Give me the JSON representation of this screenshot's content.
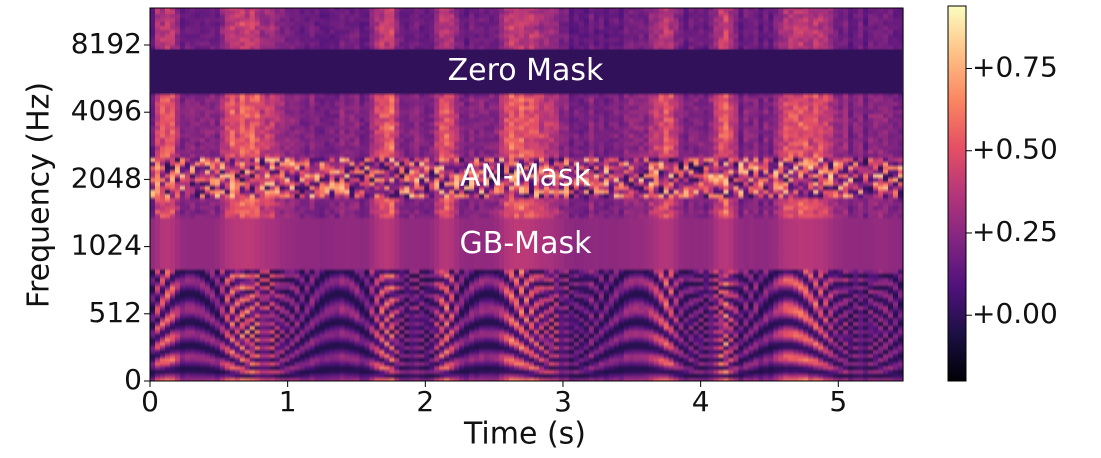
{
  "chart_data": {
    "type": "spectrogram",
    "xlabel": "Time (s)",
    "ylabel": "Frequency (Hz)",
    "xlim": [
      0,
      5.47
    ],
    "xticks": [
      0,
      1,
      2,
      3,
      4,
      5
    ],
    "ylim": [
      0,
      12000
    ],
    "yticks": [
      0,
      512,
      1024,
      2048,
      4096,
      8192
    ],
    "yscale": "symlog",
    "linthresh": 512,
    "base": 2,
    "annotations": [
      {
        "text": "Zero Mask",
        "band": [
          5000,
          7800
        ],
        "kind": "zero"
      },
      {
        "text": "AN-Mask",
        "band": [
          1700,
          2600
        ],
        "kind": "noise"
      },
      {
        "text": "GB-Mask",
        "band": [
          800,
          1370
        ],
        "kind": "blur"
      }
    ],
    "colorbar": {
      "cmap": "magma",
      "clim": [
        -0.2,
        0.94
      ],
      "ticks": [
        {
          "value": 0,
          "label": "+0.00"
        },
        {
          "value": 0.25,
          "label": "+0.25"
        },
        {
          "value": 0.5,
          "label": "+0.50"
        },
        {
          "value": 0.75,
          "label": "+0.75"
        }
      ]
    }
  }
}
